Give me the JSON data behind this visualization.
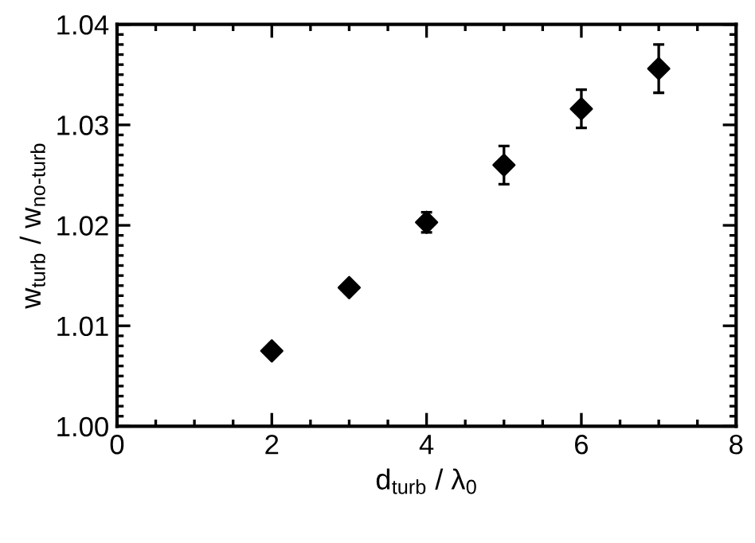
{
  "chart_data": {
    "type": "scatter",
    "xlabel": "d$_{turb}$ / λ$_{0}$",
    "ylabel": "w$_{turb}$ / w$_{no-turb}$",
    "x": [
      2,
      3,
      4,
      5,
      6,
      7
    ],
    "series": [
      {
        "color": "#000000",
        "values": [
          1.0075,
          1.0138,
          1.0203,
          1.026,
          1.0316,
          1.0356
        ],
        "errors": [
          null,
          null,
          0.001,
          0.0019,
          0.0019,
          0.0024
        ]
      }
    ],
    "marker": "diamond",
    "xlim": [
      0,
      8
    ],
    "xticks": [
      0,
      2,
      4,
      6,
      8
    ],
    "ylim": [
      1.0,
      1.04
    ],
    "yticks": [
      {
        "value": 1.0,
        "label": "1.00"
      },
      {
        "value": 1.01,
        "label": "1.01"
      },
      {
        "value": 1.02,
        "label": "1.02"
      },
      {
        "value": 1.03,
        "label": "1.03"
      },
      {
        "value": 1.04,
        "label": "1.04"
      }
    ],
    "grid": false,
    "legend": false
  }
}
